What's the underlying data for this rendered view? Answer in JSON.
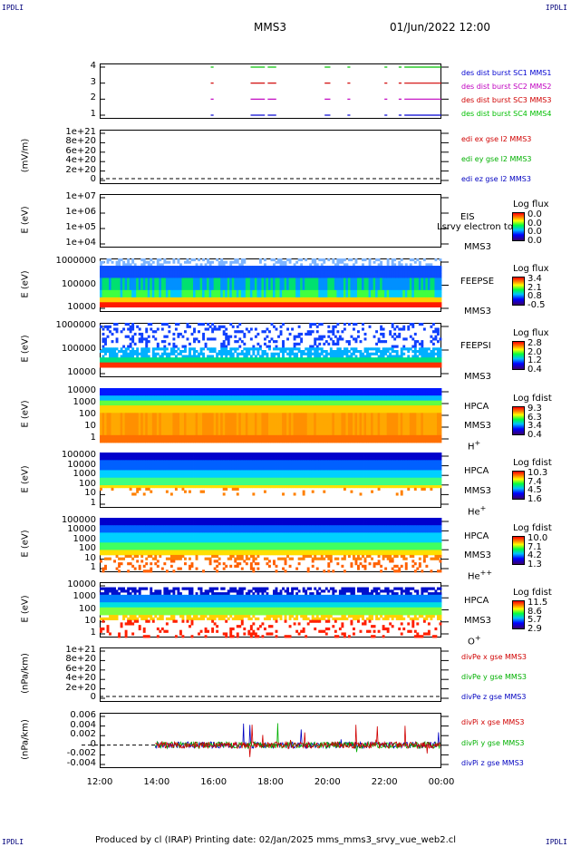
{
  "corner_labels": {
    "tl": "IPDLI",
    "tr": "IPDLI",
    "bl": "IPDLI",
    "br": "IPDLI"
  },
  "header": {
    "mission": "MMS3",
    "datetime": "01/Jun/2022 12:00"
  },
  "footer": {
    "text": "Produced by cl (IRAP)   Printing date: 02/Jan/2025   mms_mms3_srvy_vue_web2.cl"
  },
  "x_axis": {
    "ticks": [
      "12:00",
      "14:00",
      "16:00",
      "18:00",
      "20:00",
      "22:00",
      "00:00"
    ]
  },
  "colors": {
    "sc1": "#00bf00",
    "sc2": "#d00000",
    "sc3": "#c000c0",
    "sc4": "#0000d0",
    "x": "#d00000",
    "y": "#00b000",
    "z": "#0000c0"
  },
  "chart_data": [
    {
      "type": "line",
      "name": "burst",
      "y_ticks": [
        "4",
        "3",
        "2",
        "1"
      ],
      "legend": [
        {
          "text": "des dist burst SC1 MMS1",
          "color": "#0000d0"
        },
        {
          "text": "des dist burst SC2 MMS2",
          "color": "#c000c0"
        },
        {
          "text": "des dist burst SC3 MMS3",
          "color": "#d00000"
        },
        {
          "text": "des dist burst SC4 MMS4",
          "color": "#00bf00"
        }
      ],
      "series": [
        {
          "level": 4,
          "color": "#00bf00",
          "intervals": [
            [
              15.9,
              16.0
            ],
            [
              17.3,
              17.8
            ],
            [
              17.9,
              18.2
            ],
            [
              19.9,
              20.1
            ],
            [
              20.7,
              20.8
            ],
            [
              22.0,
              22.1
            ],
            [
              22.5,
              22.6
            ],
            [
              22.7,
              24.0
            ]
          ]
        },
        {
          "level": 3,
          "color": "#d00000",
          "intervals": [
            [
              15.9,
              16.0
            ],
            [
              17.3,
              17.8
            ],
            [
              17.9,
              18.2
            ],
            [
              19.9,
              20.1
            ],
            [
              20.7,
              20.8
            ],
            [
              22.0,
              22.1
            ],
            [
              22.5,
              22.6
            ],
            [
              22.7,
              24.0
            ]
          ]
        },
        {
          "level": 2,
          "color": "#c000c0",
          "intervals": [
            [
              15.9,
              16.0
            ],
            [
              17.3,
              17.8
            ],
            [
              17.9,
              18.2
            ],
            [
              19.9,
              20.1
            ],
            [
              20.7,
              20.8
            ],
            [
              22.0,
              22.1
            ],
            [
              22.5,
              22.6
            ],
            [
              22.7,
              24.0
            ]
          ]
        },
        {
          "level": 1,
          "color": "#0000d0",
          "intervals": [
            [
              15.9,
              16.0
            ],
            [
              17.3,
              17.8
            ],
            [
              17.9,
              18.2
            ],
            [
              19.9,
              20.1
            ],
            [
              20.7,
              20.8
            ],
            [
              22.0,
              22.1
            ],
            [
              22.5,
              22.6
            ],
            [
              22.7,
              24.0
            ]
          ]
        }
      ]
    },
    {
      "type": "line",
      "name": "edi",
      "ylabel": "(mV/m)",
      "y_ticks": [
        "1e+21",
        "8e+20",
        "6e+20",
        "4e+20",
        "2e+20",
        "0"
      ],
      "legend": [
        {
          "text": "edi ex gse l2 MMS3",
          "color": "#d00000"
        },
        {
          "text": "edi ey gse l2 MMS3",
          "color": "#00b000"
        },
        {
          "text": "edi ez gse l2 MMS3",
          "color": "#0000c0"
        }
      ]
    },
    {
      "type": "heatmap",
      "name": "eis",
      "ylabel": "E (eV)",
      "y_ticks": [
        "1e+07",
        "1e+06",
        "1e+05",
        "1e+04"
      ],
      "instrument": "EIS",
      "overlay": "Lsrvy electron to",
      "sc": "MMS3",
      "colorbar": {
        "title": "Log flux",
        "values": [
          "0.0",
          "0.0",
          "0.0",
          "0.0"
        ]
      }
    },
    {
      "type": "heatmap",
      "name": "feepse",
      "ylabel": "E (eV)",
      "y_ticks": [
        "1000000",
        "100000",
        "10000"
      ],
      "instrument": "FEEPSE",
      "sc": "MMS3",
      "colorbar": {
        "title": "Log flux",
        "values": [
          "3.4",
          "2.1",
          "0.8",
          "-0.5"
        ]
      }
    },
    {
      "type": "heatmap",
      "name": "feepsi",
      "ylabel": "E (eV)",
      "y_ticks": [
        "1000000",
        "100000",
        "10000"
      ],
      "instrument": "FEEPSI",
      "sc": "MMS3",
      "colorbar": {
        "title": "Log flux",
        "values": [
          "2.8",
          "2.0",
          "1.2",
          "0.4"
        ]
      }
    },
    {
      "type": "heatmap",
      "name": "hpca_h",
      "ylabel": "E (eV)",
      "y_ticks": [
        "10000",
        "1000",
        "100",
        "10",
        "1"
      ],
      "instrument": "HPCA",
      "sc": "MMS3",
      "species": "H",
      "charge": "+",
      "colorbar": {
        "title": "Log fdist",
        "values": [
          "9.3",
          "6.3",
          "3.4",
          "0.4"
        ]
      }
    },
    {
      "type": "heatmap",
      "name": "hpca_he",
      "ylabel": "E (eV)",
      "y_ticks": [
        "100000",
        "10000",
        "1000",
        "100",
        "10",
        "1"
      ],
      "instrument": "HPCA",
      "sc": "MMS3",
      "species": "He",
      "charge": "+",
      "colorbar": {
        "title": "Log fdist",
        "values": [
          "10.3",
          "7.4",
          "4.5",
          "1.6"
        ]
      }
    },
    {
      "type": "heatmap",
      "name": "hpca_hepp",
      "ylabel": "E (eV)",
      "y_ticks": [
        "100000",
        "10000",
        "1000",
        "100",
        "10",
        "1"
      ],
      "instrument": "HPCA",
      "sc": "MMS3",
      "species": "He",
      "charge": "++",
      "colorbar": {
        "title": "Log fdist",
        "values": [
          "10.0",
          "7.1",
          "4.2",
          "1.3"
        ]
      }
    },
    {
      "type": "heatmap",
      "name": "hpca_o",
      "ylabel": "E (eV)",
      "y_ticks": [
        "10000",
        "1000",
        "100",
        "10",
        "1"
      ],
      "instrument": "HPCA",
      "sc": "MMS3",
      "species": "O",
      "charge": "+",
      "colorbar": {
        "title": "Log fdist",
        "values": [
          "11.5",
          "8.6",
          "5.7",
          "2.9"
        ]
      }
    },
    {
      "type": "line",
      "name": "divpe",
      "ylabel": "(nPa/km)",
      "y_ticks": [
        "1e+21",
        "8e+20",
        "6e+20",
        "4e+20",
        "2e+20",
        "0"
      ],
      "legend": [
        {
          "text": "divPe x gse MMS3",
          "color": "#d00000"
        },
        {
          "text": "divPe y gse MMS3",
          "color": "#00b000"
        },
        {
          "text": "divPe z gse MMS3",
          "color": "#0000c0"
        }
      ]
    },
    {
      "type": "line",
      "name": "divpi",
      "ylabel": "(nPa/km)",
      "y_ticks": [
        "0.006",
        "0.004",
        "0.002",
        "0",
        "-0.002",
        "-0.004"
      ],
      "ylim": [
        -0.005,
        0.007
      ],
      "legend": [
        {
          "text": "divPi x gse MMS3",
          "color": "#d00000"
        },
        {
          "text": "divPi y gse MMS3",
          "color": "#00b000"
        },
        {
          "text": "divPi z gse MMS3",
          "color": "#0000c0"
        }
      ]
    }
  ]
}
